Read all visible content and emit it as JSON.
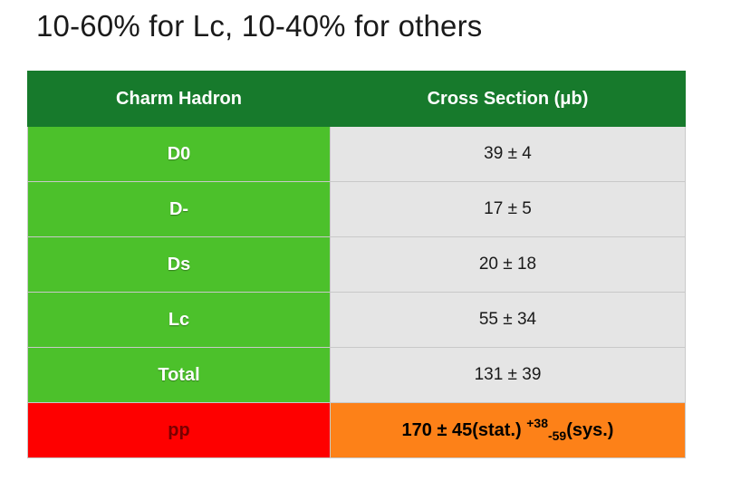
{
  "title": "10-60% for Lc, 10-40% for others",
  "table": {
    "headers": [
      "Charm Hadron",
      "Cross Section (μb)"
    ],
    "rows": [
      {
        "hadron": "D0",
        "cross_section": "39 ± 4"
      },
      {
        "hadron": "D-",
        "cross_section": "17 ± 5"
      },
      {
        "hadron": "Ds",
        "cross_section": "20 ± 18"
      },
      {
        "hadron": "Lc",
        "cross_section": "55 ± 34"
      },
      {
        "hadron": "Total",
        "cross_section": "131 ± 39"
      }
    ],
    "pp": {
      "label": "pp",
      "value_main": "170 ± 45(stat.) ",
      "sys_plus": "+38",
      "sys_minus": "-59",
      "sys_suffix": "(sys.)"
    }
  },
  "colors": {
    "header_bg": "#177a2c",
    "hadron_bg": "#4cc12b",
    "value_bg": "#e5e5e5",
    "pp_label_bg": "#fe0000",
    "pp_value_bg": "#fd8118"
  }
}
